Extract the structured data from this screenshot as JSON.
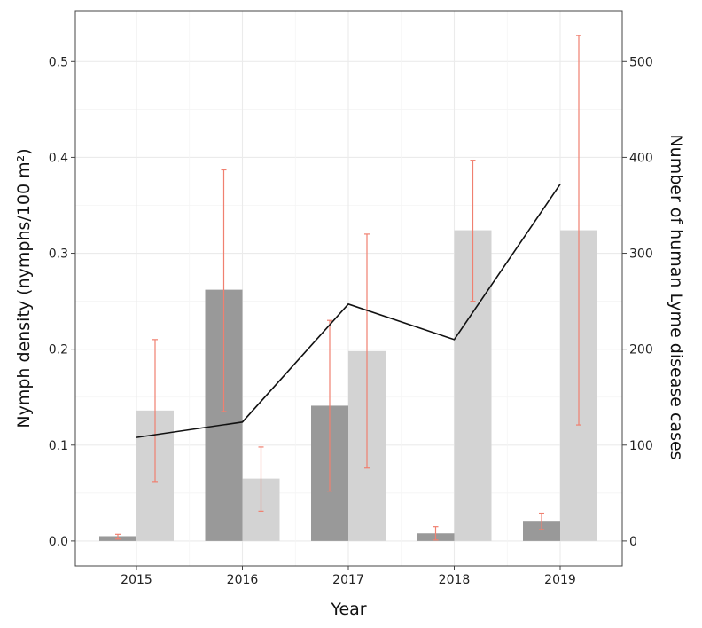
{
  "chart_data": {
    "type": "bar",
    "title": "",
    "xlabel": "Year",
    "ylabel": "Nymph density (nymphs/100 m²)",
    "y2label": "Number of human Lyme disease cases",
    "categories": [
      "2015",
      "2016",
      "2017",
      "2018",
      "2019"
    ],
    "ylim": [
      -0.026,
      0.553
    ],
    "y2lim": [
      -26,
      553
    ],
    "yticks": [
      "0.0",
      "0.1",
      "0.2",
      "0.3",
      "0.4",
      "0.5"
    ],
    "y2ticks": [
      "0",
      "100",
      "200",
      "300",
      "400",
      "500"
    ],
    "grid": true,
    "series": [
      {
        "kind": "bar",
        "color": "#999999",
        "values": [
          0.005,
          0.262,
          0.141,
          0.008,
          0.021
        ],
        "error_low": [
          0.002,
          0.135,
          0.052,
          0.001,
          0.012
        ],
        "error_high": [
          0.007,
          0.387,
          0.23,
          0.015,
          0.029
        ]
      },
      {
        "kind": "bar",
        "color": "#d3d3d3",
        "values": [
          0.136,
          0.065,
          0.198,
          0.324,
          0.324
        ],
        "error_low": [
          0.062,
          0.031,
          0.076,
          0.25,
          0.121
        ],
        "error_high": [
          0.21,
          0.098,
          0.32,
          0.397,
          0.527
        ]
      },
      {
        "kind": "line",
        "axis": "right",
        "color": "#111111",
        "values": [
          108,
          124,
          247,
          210,
          372
        ]
      }
    ],
    "error_bar_color": "#f08070"
  }
}
